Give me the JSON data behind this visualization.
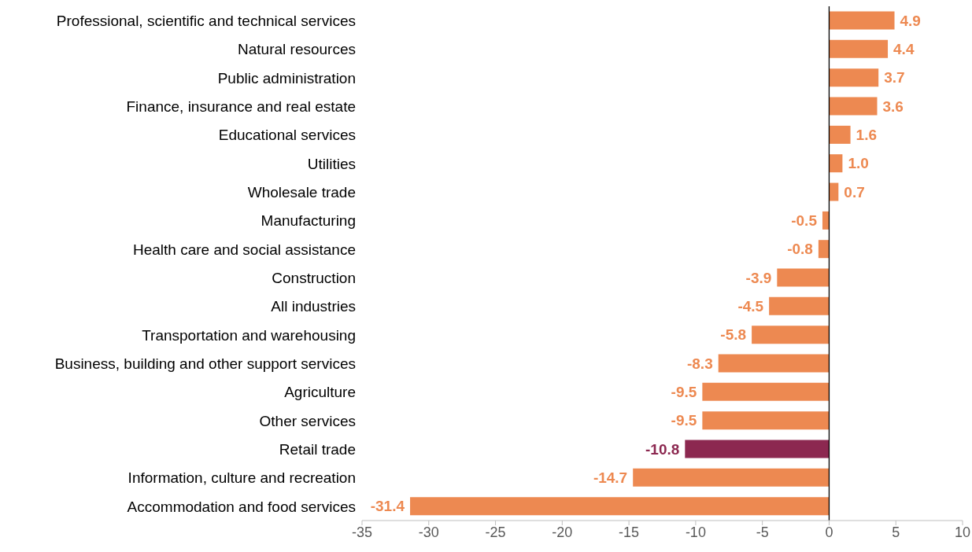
{
  "chart_data": {
    "type": "bar",
    "orientation": "horizontal",
    "categories": [
      "Professional, scientific and technical services",
      "Natural resources",
      "Public administration",
      "Finance, insurance and real estate",
      "Educational services",
      "Utilities",
      "Wholesale trade",
      "Manufacturing",
      "Health care and social assistance",
      "Construction",
      "All industries",
      "Transportation and warehousing",
      "Business, building and other support services",
      "Agriculture",
      "Other services",
      "Retail trade",
      "Information, culture and recreation",
      "Accommodation and food services"
    ],
    "values": [
      4.9,
      4.4,
      3.7,
      3.6,
      1.6,
      1.0,
      0.7,
      -0.5,
      -0.8,
      -3.9,
      -4.5,
      -5.8,
      -8.3,
      -9.5,
      -9.5,
      -10.8,
      -14.7,
      -31.4
    ],
    "value_labels": [
      "4.9",
      "4.4",
      "3.7",
      "3.6",
      "1.6",
      "1.0",
      "0.7",
      "-0.5",
      "-0.8",
      "-3.9",
      "-4.5",
      "-5.8",
      "-8.3",
      "-9.5",
      "-9.5",
      "-10.8",
      "-14.7",
      "-31.4"
    ],
    "colors": [
      "#ed8951",
      "#ed8951",
      "#ed8951",
      "#ed8951",
      "#ed8951",
      "#ed8951",
      "#ed8951",
      "#ed8951",
      "#ed8951",
      "#ed8951",
      "#ed8951",
      "#ed8951",
      "#ed8951",
      "#ed8951",
      "#ed8951",
      "#8c2850",
      "#ed8951",
      "#ed8951"
    ],
    "xlim": [
      -35,
      10
    ],
    "xticks": [
      -35,
      -30,
      -25,
      -20,
      -15,
      -10,
      -5,
      0,
      5,
      10
    ]
  }
}
